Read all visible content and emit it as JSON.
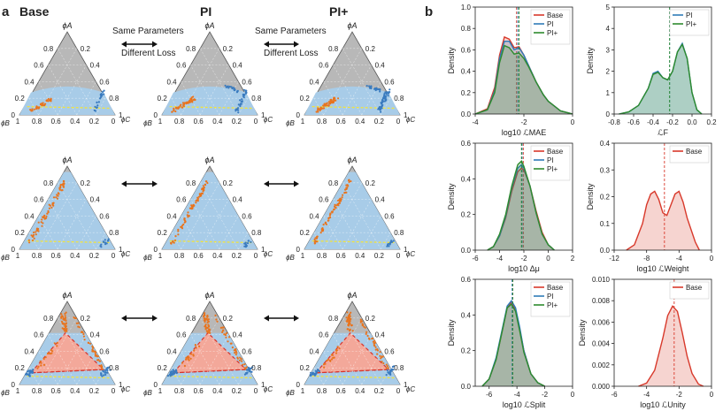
{
  "panel_labels": {
    "a": "a",
    "b": "b"
  },
  "ternary": {
    "columns": [
      "Base",
      "PI",
      "PI+"
    ],
    "vertex_labels": {
      "top": "ϕA",
      "left": "ϕB",
      "right": "ϕC"
    },
    "ticks_left": [
      "0.8",
      "0.6",
      "0.4",
      "0.2",
      "0"
    ],
    "ticks_right": [
      "0.2",
      "0.4",
      "0.6",
      "0.8",
      "1"
    ],
    "ticks_bottom": [
      "1",
      "0.8",
      "0.6",
      "0.4",
      "0.2",
      "0"
    ],
    "annotations": [
      "Same Parameters",
      "Different Loss"
    ],
    "colors": {
      "grey": "#b8b8b8",
      "blue": "#a8cce8",
      "red": "#f3a89a",
      "orange": "#e8741e",
      "scatter_blue": "#3a7bbf",
      "yellow": "#f2e33c",
      "dashed_red": "#d8342a"
    }
  },
  "chart_data": [
    {
      "type": "area",
      "title": "",
      "xlabel": "log10 ℒMAE",
      "ylabel": "Density",
      "xlim": [
        -4,
        0
      ],
      "ylim": [
        0,
        1.0
      ],
      "xticks": [
        "-4",
        "-2",
        "0"
      ],
      "yticks": [
        "0.0",
        "0.2",
        "0.4",
        "0.6",
        "0.8",
        "1.0"
      ],
      "legend": [
        "Base",
        "PI",
        "PI+"
      ],
      "series": [
        {
          "name": "Base",
          "color": "#d8392b",
          "x": [
            -4,
            -3.5,
            -3.2,
            -3.0,
            -2.8,
            -2.6,
            -2.4,
            -2.2,
            -2.0,
            -1.8,
            -1.5,
            -1.2,
            -1.0,
            -0.5,
            0
          ],
          "y": [
            0.0,
            0.05,
            0.25,
            0.55,
            0.72,
            0.7,
            0.62,
            0.63,
            0.55,
            0.45,
            0.3,
            0.18,
            0.12,
            0.03,
            0.0
          ],
          "mean": -2.3
        },
        {
          "name": "PI",
          "color": "#2f7bb8",
          "x": [
            -4,
            -3.5,
            -3.2,
            -3.0,
            -2.8,
            -2.6,
            -2.4,
            -2.2,
            -2.0,
            -1.8,
            -1.5,
            -1.2,
            -1.0,
            -0.5,
            0
          ],
          "y": [
            0.0,
            0.04,
            0.22,
            0.52,
            0.68,
            0.68,
            0.6,
            0.62,
            0.55,
            0.45,
            0.3,
            0.18,
            0.12,
            0.03,
            0.0
          ],
          "mean": -2.25
        },
        {
          "name": "PI+",
          "color": "#2e8b2e",
          "x": [
            -4,
            -3.5,
            -3.2,
            -3.0,
            -2.8,
            -2.6,
            -2.4,
            -2.2,
            -2.0,
            -1.8,
            -1.5,
            -1.2,
            -1.0,
            -0.5,
            0
          ],
          "y": [
            0.0,
            0.04,
            0.2,
            0.48,
            0.64,
            0.62,
            0.56,
            0.57,
            0.52,
            0.44,
            0.3,
            0.18,
            0.12,
            0.03,
            0.0
          ],
          "mean": -2.2
        }
      ]
    },
    {
      "type": "area",
      "title": "",
      "xlabel": "ℒF",
      "ylabel": "Density",
      "xlim": [
        -0.8,
        0.2
      ],
      "ylim": [
        0,
        5
      ],
      "xticks": [
        "-0.8",
        "-0.6",
        "-0.4",
        "-0.2",
        "0.0",
        "0.2"
      ],
      "yticks": [
        "0",
        "1",
        "2",
        "3",
        "4",
        "5"
      ],
      "legend": [
        "PI",
        "PI+"
      ],
      "series": [
        {
          "name": "PI",
          "color": "#2f7bb8",
          "x": [
            -0.75,
            -0.65,
            -0.55,
            -0.45,
            -0.4,
            -0.35,
            -0.3,
            -0.25,
            -0.2,
            -0.15,
            -0.1,
            -0.05,
            0.0,
            0.05,
            0.1
          ],
          "y": [
            0.0,
            0.1,
            0.4,
            1.2,
            1.9,
            2.0,
            1.7,
            1.6,
            2.0,
            2.9,
            3.3,
            2.6,
            1.0,
            0.2,
            0.0
          ],
          "mean": -0.23
        },
        {
          "name": "PI+",
          "color": "#2e8b2e",
          "x": [
            -0.75,
            -0.65,
            -0.55,
            -0.45,
            -0.4,
            -0.35,
            -0.3,
            -0.25,
            -0.2,
            -0.15,
            -0.1,
            -0.05,
            0.0,
            0.05,
            0.1
          ],
          "y": [
            0.0,
            0.1,
            0.4,
            1.2,
            1.85,
            1.95,
            1.7,
            1.6,
            2.0,
            2.9,
            3.25,
            2.6,
            1.0,
            0.2,
            0.0
          ],
          "mean": -0.23
        }
      ]
    },
    {
      "type": "area",
      "title": "",
      "xlabel": "log10 Δμ",
      "ylabel": "Density",
      "xlim": [
        -6,
        2
      ],
      "ylim": [
        0,
        0.6
      ],
      "xticks": [
        "-6",
        "-4",
        "-2",
        "0",
        "2"
      ],
      "yticks": [
        "0.0",
        "0.2",
        "0.4",
        "0.6"
      ],
      "legend": [
        "Base",
        "PI",
        "PI+"
      ],
      "series": [
        {
          "name": "Base",
          "color": "#d8392b",
          "x": [
            -5,
            -4.5,
            -4,
            -3.5,
            -3,
            -2.5,
            -2.2,
            -2,
            -1.5,
            -1,
            -0.5,
            0,
            0.5
          ],
          "y": [
            0.0,
            0.02,
            0.08,
            0.18,
            0.33,
            0.44,
            0.46,
            0.45,
            0.36,
            0.22,
            0.1,
            0.03,
            0.0
          ],
          "mean": -2.05
        },
        {
          "name": "PI",
          "color": "#2f7bb8",
          "x": [
            -5,
            -4.5,
            -4,
            -3.5,
            -3,
            -2.5,
            -2.2,
            -2,
            -1.5,
            -1,
            -0.5,
            0,
            0.5
          ],
          "y": [
            0.0,
            0.02,
            0.08,
            0.19,
            0.35,
            0.46,
            0.48,
            0.46,
            0.36,
            0.21,
            0.09,
            0.03,
            0.0
          ],
          "mean": -2.15
        },
        {
          "name": "PI+",
          "color": "#2e8b2e",
          "x": [
            -5,
            -4.5,
            -4,
            -3.5,
            -3,
            -2.5,
            -2.2,
            -2,
            -1.5,
            -1,
            -0.5,
            0,
            0.5
          ],
          "y": [
            0.0,
            0.02,
            0.09,
            0.2,
            0.36,
            0.48,
            0.5,
            0.47,
            0.36,
            0.21,
            0.09,
            0.03,
            0.0
          ],
          "mean": -2.2
        }
      ]
    },
    {
      "type": "area",
      "title": "",
      "xlabel": "log10 ℒWeight",
      "ylabel": "Density",
      "xlim": [
        -12,
        0
      ],
      "ylim": [
        0,
        0.4
      ],
      "xticks": [
        "-12",
        "-8",
        "-4",
        "0"
      ],
      "yticks": [
        "0.0",
        "0.1",
        "0.2",
        "0.3",
        "0.4"
      ],
      "legend": [
        "Base"
      ],
      "series": [
        {
          "name": "Base",
          "color": "#d8392b",
          "x": [
            -10.5,
            -9.5,
            -8.5,
            -8,
            -7.5,
            -7,
            -6.5,
            -6,
            -5.5,
            -5,
            -4.5,
            -4,
            -3.5,
            -3,
            -2,
            -1.5
          ],
          "y": [
            0.0,
            0.02,
            0.1,
            0.17,
            0.21,
            0.22,
            0.19,
            0.14,
            0.13,
            0.17,
            0.21,
            0.22,
            0.18,
            0.12,
            0.03,
            0.0
          ],
          "mean": -5.8
        }
      ]
    },
    {
      "type": "area",
      "title": "",
      "xlabel": "log10 ℒSplit",
      "ylabel": "Density",
      "xlim": [
        -7,
        0
      ],
      "ylim": [
        0,
        0.6
      ],
      "xticks": [
        "-6",
        "-4",
        "-2",
        "0"
      ],
      "yticks": [
        "0.0",
        "0.2",
        "0.4",
        "0.6"
      ],
      "legend": [
        "Base",
        "PI",
        "PI+"
      ],
      "series": [
        {
          "name": "Base",
          "color": "#d8392b",
          "x": [
            -6.5,
            -6,
            -5.5,
            -5,
            -4.7,
            -4.4,
            -4.1,
            -3.8,
            -3.5,
            -3,
            -2.5,
            -2
          ],
          "y": [
            0.0,
            0.04,
            0.15,
            0.33,
            0.44,
            0.47,
            0.43,
            0.32,
            0.2,
            0.07,
            0.02,
            0.0
          ],
          "mean": -4.3
        },
        {
          "name": "PI",
          "color": "#2f7bb8",
          "x": [
            -6.5,
            -6,
            -5.5,
            -5,
            -4.7,
            -4.4,
            -4.1,
            -3.8,
            -3.5,
            -3,
            -2.5,
            -2
          ],
          "y": [
            0.0,
            0.04,
            0.16,
            0.34,
            0.45,
            0.48,
            0.44,
            0.33,
            0.2,
            0.07,
            0.02,
            0.0
          ],
          "mean": -4.35
        },
        {
          "name": "PI+",
          "color": "#2e8b2e",
          "x": [
            -6.5,
            -6,
            -5.5,
            -5,
            -4.7,
            -4.4,
            -4.1,
            -3.8,
            -3.5,
            -3,
            -2.5,
            -2
          ],
          "y": [
            0.0,
            0.04,
            0.15,
            0.33,
            0.44,
            0.46,
            0.42,
            0.31,
            0.19,
            0.07,
            0.02,
            0.0
          ],
          "mean": -4.3
        }
      ]
    },
    {
      "type": "area",
      "title": "",
      "xlabel": "log10 ℒUnity",
      "ylabel": "Density",
      "xlim": [
        -6,
        0
      ],
      "ylim": [
        0,
        0.01
      ],
      "xticks": [
        "-6",
        "-4",
        "-2",
        "0"
      ],
      "yticks": [
        "0.000",
        "0.002",
        "0.004",
        "0.006",
        "0.008",
        "0.010"
      ],
      "legend": [
        "Base"
      ],
      "series": [
        {
          "name": "Base",
          "color": "#d8392b",
          "x": [
            -4.5,
            -4,
            -3.5,
            -3,
            -2.7,
            -2.4,
            -2.1,
            -1.8,
            -1.5,
            -1.2,
            -0.8,
            -0.5
          ],
          "y": [
            0.0,
            0.0003,
            0.0015,
            0.0045,
            0.0066,
            0.0075,
            0.007,
            0.005,
            0.0028,
            0.0012,
            0.0002,
            0.0
          ],
          "mean": -2.3
        }
      ]
    }
  ]
}
